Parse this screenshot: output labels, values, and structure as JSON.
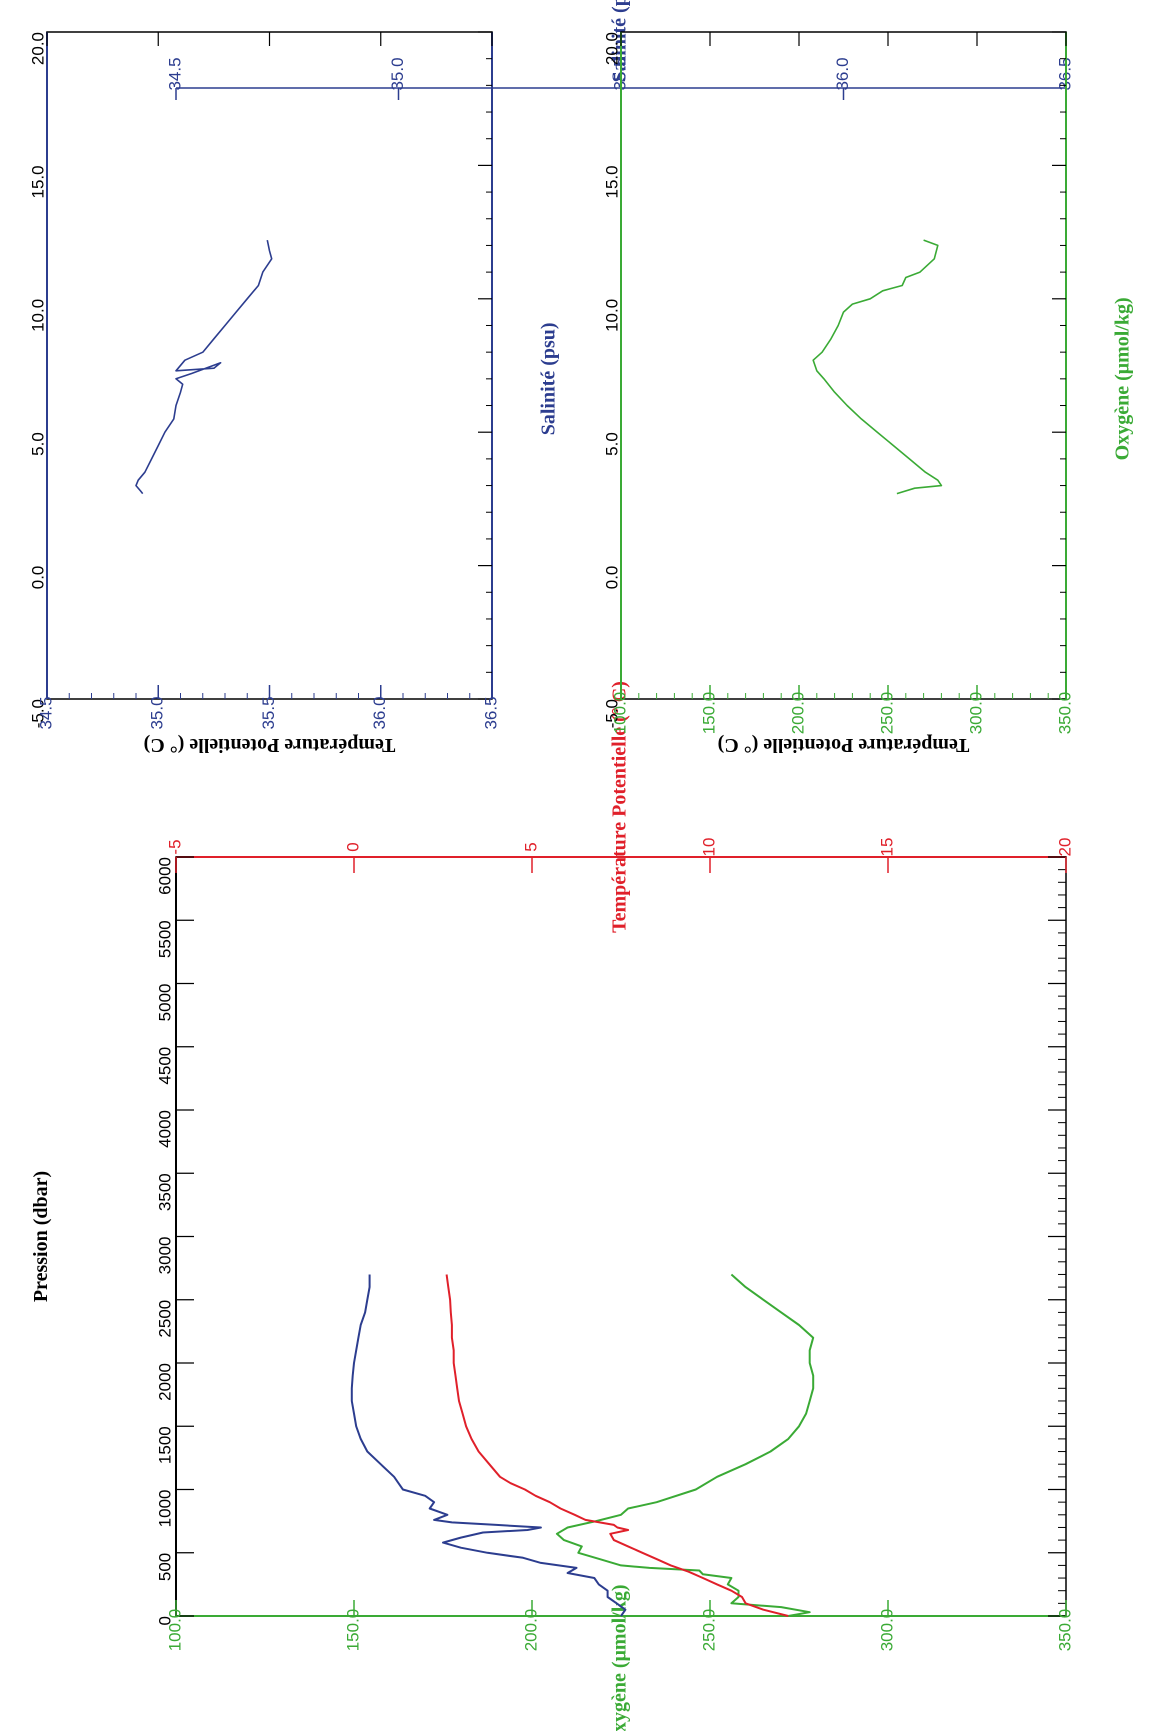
{
  "colors": {
    "salinity": "#2c3d8f",
    "oxygen": "#3aaa35",
    "temperature": "#e0202a",
    "frame": "#000000"
  },
  "chart_data": [
    {
      "type": "line",
      "orientation": "rotated-90-clockwise",
      "x_axis": {
        "label": "Pression (dbar)",
        "range": [
          0,
          6000
        ],
        "ticks": [
          "0",
          "500",
          "1000",
          "1500",
          "2000",
          "2500",
          "3000",
          "3500",
          "4000",
          "4500",
          "5000",
          "5500",
          "6000"
        ]
      },
      "y_axes": [
        {
          "key": "sal",
          "label": "Salinité (psu)",
          "range": [
            34.5,
            36.5
          ],
          "ticks": [
            "34.5",
            "35.0",
            "35.5",
            "36.0",
            "36.5"
          ]
        },
        {
          "key": "oxy",
          "label": "Oxygène (μmol/kg)",
          "range": [
            100,
            350
          ],
          "ticks": [
            "100.0",
            "150.0",
            "200.0",
            "250.0",
            "300.0",
            "350.0"
          ]
        },
        {
          "key": "temp",
          "label": "Température Potentielle (° C)",
          "range": [
            -5,
            20
          ],
          "ticks": [
            "-5",
            "0",
            "5",
            "10",
            "15",
            "20"
          ]
        }
      ],
      "series": [
        {
          "key": "sal",
          "axis": "sal",
          "x": [
            0,
            50,
            100,
            150,
            200,
            250,
            300,
            340,
            380,
            420,
            460,
            500,
            540,
            580,
            620,
            660,
            680,
            700,
            720,
            740,
            760,
            800,
            850,
            900,
            950,
            1000,
            1050,
            1100,
            1200,
            1300,
            1400,
            1500,
            1600,
            1700,
            1800,
            1900,
            2000,
            2100,
            2200,
            2300,
            2400,
            2500,
            2600,
            2700
          ],
          "values": [
            35.5,
            35.51,
            35.49,
            35.47,
            35.47,
            35.45,
            35.44,
            35.38,
            35.4,
            35.32,
            35.28,
            35.2,
            35.14,
            35.1,
            35.14,
            35.19,
            35.29,
            35.32,
            35.22,
            35.12,
            35.08,
            35.11,
            35.07,
            35.08,
            35.06,
            35.01,
            35.0,
            34.99,
            34.96,
            34.93,
            34.915,
            34.905,
            34.9,
            34.895,
            34.895,
            34.897,
            34.9,
            34.905,
            34.91,
            34.915,
            34.925,
            34.93,
            34.935,
            34.935
          ]
        },
        {
          "key": "oxy",
          "axis": "oxy",
          "x": [
            0,
            30,
            70,
            100,
            150,
            200,
            250,
            300,
            330,
            360,
            380,
            400,
            450,
            500,
            550,
            600,
            650,
            700,
            750,
            800,
            850,
            900,
            1000,
            1100,
            1200,
            1300,
            1400,
            1500,
            1600,
            1700,
            1800,
            1900,
            2000,
            2100,
            2200,
            2300,
            2400,
            2500,
            2600,
            2700
          ],
          "values": [
            272,
            278,
            270,
            256,
            258,
            258,
            255,
            256,
            248,
            247,
            233,
            225,
            219,
            213,
            214,
            209,
            207,
            210,
            218,
            225,
            227,
            235,
            246,
            252,
            260,
            267,
            272,
            275,
            277,
            278,
            279,
            279,
            278,
            278,
            279,
            275,
            270,
            265,
            260,
            256
          ]
        },
        {
          "key": "temp",
          "axis": "temp",
          "x": [
            0,
            50,
            100,
            150,
            200,
            250,
            300,
            350,
            400,
            450,
            500,
            550,
            600,
            650,
            680,
            700,
            720,
            740,
            760,
            800,
            850,
            900,
            950,
            1000,
            1050,
            1100,
            1200,
            1300,
            1400,
            1500,
            1600,
            1700,
            1800,
            1900,
            2000,
            2100,
            2200,
            2300,
            2400,
            2500,
            2600,
            2700
          ],
          "values": [
            12.2,
            11.5,
            11.0,
            10.9,
            10.6,
            10.2,
            9.8,
            9.4,
            8.9,
            8.5,
            8.1,
            7.7,
            7.3,
            7.2,
            7.7,
            7.4,
            7.3,
            6.9,
            6.5,
            6.2,
            5.8,
            5.5,
            5.1,
            4.8,
            4.4,
            4.1,
            3.8,
            3.5,
            3.3,
            3.15,
            3.05,
            2.95,
            2.9,
            2.85,
            2.8,
            2.8,
            2.75,
            2.75,
            2.72,
            2.7,
            2.65,
            2.6
          ]
        }
      ]
    },
    {
      "type": "line",
      "orientation": "rotated-90-clockwise",
      "x_axis": {
        "label": "Température Potentielle (° C)",
        "range": [
          -5,
          20
        ],
        "ticks": [
          "-5.0",
          "0.0",
          "5.0",
          "10.0",
          "15.0",
          "20.0"
        ]
      },
      "y_axes": [
        {
          "key": "sal",
          "label": "Salinité (psu)",
          "range": [
            34.5,
            36.5
          ],
          "ticks": [
            "34.5",
            "35.0",
            "35.5",
            "36.0",
            "36.5"
          ]
        }
      ],
      "series": [
        {
          "key": "sal",
          "axis": "sal",
          "x": [
            12.2,
            11.8,
            11.5,
            11.0,
            10.5,
            10.0,
            9.5,
            9.0,
            8.5,
            8.0,
            7.7,
            7.3,
            7.4,
            7.6,
            7.2,
            7.0,
            6.8,
            6.5,
            6.0,
            5.5,
            5.0,
            4.5,
            4.0,
            3.5,
            3.2,
            3.0,
            2.8,
            2.7
          ],
          "values": [
            35.49,
            35.5,
            35.51,
            35.47,
            35.45,
            35.4,
            35.35,
            35.3,
            35.25,
            35.2,
            35.12,
            35.08,
            35.25,
            35.28,
            35.15,
            35.08,
            35.11,
            35.1,
            35.08,
            35.07,
            35.03,
            35.0,
            34.97,
            34.94,
            34.91,
            34.9,
            34.92,
            34.93
          ]
        }
      ]
    },
    {
      "type": "line",
      "orientation": "rotated-90-clockwise",
      "x_axis": {
        "label": "Température Potentielle (° C)",
        "range": [
          -5,
          20
        ],
        "ticks": [
          "-5.0",
          "0.0",
          "5.0",
          "10.0",
          "15.0",
          "20.0"
        ]
      },
      "y_axes": [
        {
          "key": "oxy",
          "label": "Oxygène (μmol/kg)",
          "range": [
            100,
            350
          ],
          "ticks": [
            "100.0",
            "150.0",
            "200.0",
            "250.0",
            "300.0",
            "350.0"
          ]
        }
      ],
      "series": [
        {
          "key": "oxy",
          "axis": "oxy",
          "x": [
            12.2,
            12.0,
            11.5,
            11.0,
            10.8,
            10.5,
            10.3,
            10.0,
            9.8,
            9.5,
            9.0,
            8.5,
            8.0,
            7.7,
            7.3,
            7.0,
            6.5,
            6.0,
            5.5,
            5.0,
            4.5,
            4.0,
            3.5,
            3.2,
            3.0,
            2.9,
            2.7
          ],
          "values": [
            270,
            278,
            276,
            268,
            260,
            258,
            247,
            240,
            230,
            225,
            222,
            218,
            213,
            208,
            210,
            214,
            220,
            227,
            235,
            244,
            253,
            262,
            271,
            278,
            280,
            265,
            255
          ]
        }
      ]
    }
  ]
}
